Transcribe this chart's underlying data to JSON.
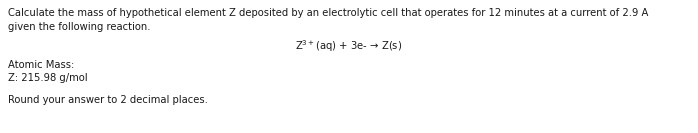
{
  "background_color": "#ffffff",
  "line1": "Calculate the mass of hypothetical element Z deposited by an electrolytic cell that operates for 12 minutes at a current of 2.9 A",
  "line2": "given the following reaction.",
  "reaction_arrow": "→",
  "atomic_mass_label": "Atomic Mass:",
  "atomic_mass_value": "Z: 215.98 g/mol",
  "round_note": "Round your answer to 2 decimal places.",
  "font_size_body": 7.2,
  "text_color": "#1a1a1a",
  "fig_width": 6.98,
  "fig_height": 1.33,
  "dpi": 100
}
